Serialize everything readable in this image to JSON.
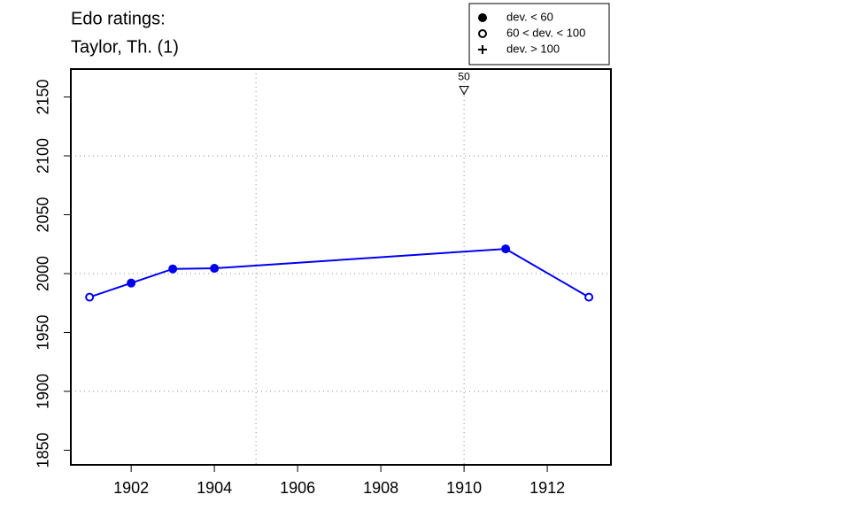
{
  "chart_data": {
    "type": "line",
    "title": [
      "Edo ratings:",
      "Taylor, Th. (1)"
    ],
    "x": [
      1901,
      1902,
      1903,
      1904,
      1911,
      1913
    ],
    "values": [
      1980,
      1992,
      2004,
      2004.5,
      2021,
      1980
    ],
    "markers": [
      "open",
      "filled",
      "filled",
      "filled",
      "filled",
      "open"
    ],
    "color": "#0000ee",
    "xlim": [
      1900.55,
      1913.53
    ],
    "xticks": [
      1902,
      1904,
      1906,
      1908,
      1910,
      1912
    ],
    "ylim": [
      1837.6,
      2173.7
    ],
    "yticks": [
      1850,
      1900,
      1950,
      2000,
      2050,
      2100,
      2150
    ],
    "xgrid": [
      1905,
      1910
    ],
    "ygrid": [
      1900,
      2000,
      2100
    ],
    "grid": true,
    "legend": [
      {
        "label": "dev. < 60",
        "marker": "filled"
      },
      {
        "label": "60 < dev. < 100",
        "marker": "open"
      },
      {
        "label": "dev. > 100",
        "marker": "plus"
      }
    ],
    "legend_position": "top-right",
    "annotations": [
      {
        "text": "50",
        "x": 1910,
        "y": 2156
      }
    ]
  }
}
